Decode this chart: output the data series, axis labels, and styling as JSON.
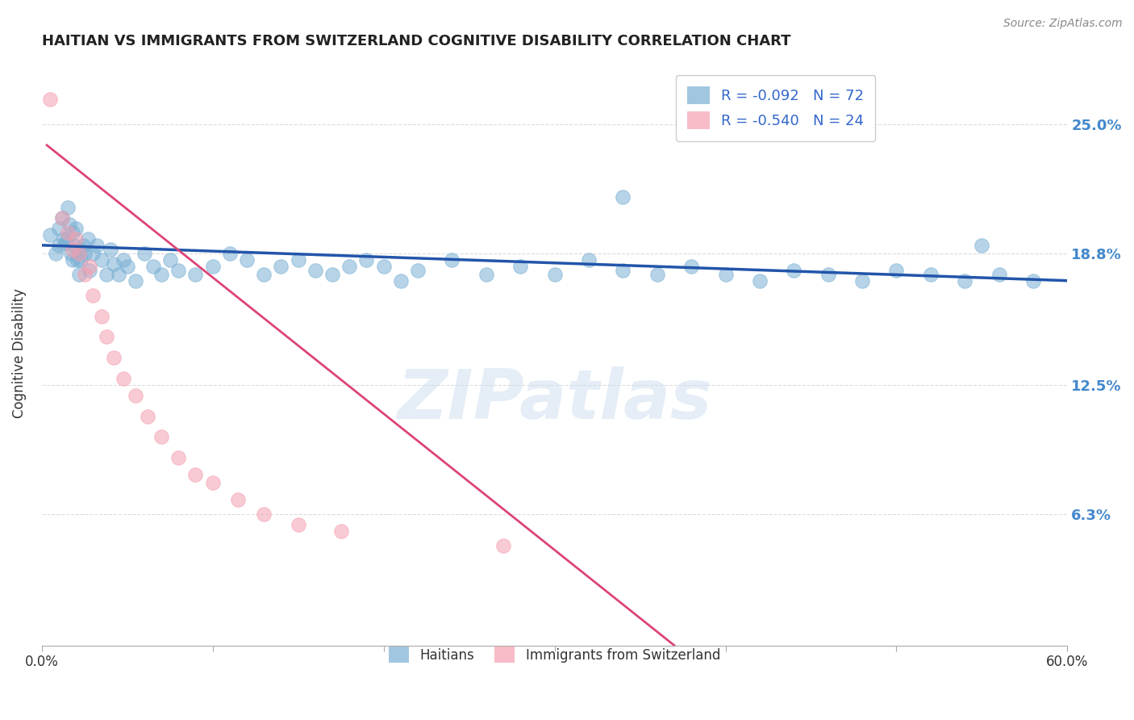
{
  "title": "HAITIAN VS IMMIGRANTS FROM SWITZERLAND COGNITIVE DISABILITY CORRELATION CHART",
  "source": "Source: ZipAtlas.com",
  "ylabel": "Cognitive Disability",
  "xlim": [
    0.0,
    0.6
  ],
  "ylim": [
    0.0,
    0.28
  ],
  "yticks": [
    0.063,
    0.125,
    0.188,
    0.25
  ],
  "ytick_labels": [
    "6.3%",
    "12.5%",
    "18.8%",
    "25.0%"
  ],
  "xtick_positions": [
    0.0,
    0.1,
    0.2,
    0.3,
    0.4,
    0.5,
    0.6
  ],
  "xtick_labels": [
    "0.0%",
    "",
    "",
    "",
    "",
    "",
    "60.0%"
  ],
  "blue_R": -0.092,
  "blue_N": 72,
  "pink_R": -0.54,
  "pink_N": 24,
  "blue_color": "#7ab0d4",
  "pink_color": "#f4a0b0",
  "blue_line_color": "#2255aa",
  "pink_line_color": "#dd4477",
  "background_color": "#ffffff",
  "grid_color": "#cccccc",
  "watermark": "ZIPatlas",
  "title_color": "#222222",
  "axis_label_color": "#333333",
  "right_tick_color": "#4488cc",
  "legend_label_color": "#3366cc",
  "blue_x": [
    0.005,
    0.008,
    0.01,
    0.01,
    0.012,
    0.013,
    0.014,
    0.015,
    0.015,
    0.016,
    0.017,
    0.018,
    0.018,
    0.019,
    0.02,
    0.021,
    0.022,
    0.022,
    0.023,
    0.024,
    0.025,
    0.027,
    0.028,
    0.03,
    0.032,
    0.035,
    0.038,
    0.04,
    0.042,
    0.045,
    0.048,
    0.05,
    0.055,
    0.06,
    0.065,
    0.07,
    0.075,
    0.08,
    0.09,
    0.1,
    0.11,
    0.12,
    0.13,
    0.14,
    0.15,
    0.16,
    0.17,
    0.18,
    0.19,
    0.2,
    0.21,
    0.22,
    0.24,
    0.26,
    0.28,
    0.3,
    0.32,
    0.34,
    0.36,
    0.38,
    0.4,
    0.42,
    0.44,
    0.46,
    0.48,
    0.5,
    0.52,
    0.54,
    0.56,
    0.58,
    0.34,
    0.55
  ],
  "blue_y": [
    0.197,
    0.188,
    0.2,
    0.192,
    0.205,
    0.195,
    0.193,
    0.21,
    0.195,
    0.202,
    0.188,
    0.198,
    0.185,
    0.192,
    0.2,
    0.185,
    0.19,
    0.178,
    0.185,
    0.192,
    0.188,
    0.195,
    0.18,
    0.188,
    0.192,
    0.185,
    0.178,
    0.19,
    0.183,
    0.178,
    0.185,
    0.182,
    0.175,
    0.188,
    0.182,
    0.178,
    0.185,
    0.18,
    0.178,
    0.182,
    0.188,
    0.185,
    0.178,
    0.182,
    0.185,
    0.18,
    0.178,
    0.182,
    0.185,
    0.182,
    0.175,
    0.18,
    0.185,
    0.178,
    0.182,
    0.178,
    0.185,
    0.18,
    0.178,
    0.182,
    0.178,
    0.175,
    0.18,
    0.178,
    0.175,
    0.18,
    0.178,
    0.175,
    0.178,
    0.175,
    0.215,
    0.192
  ],
  "pink_x": [
    0.005,
    0.012,
    0.015,
    0.018,
    0.02,
    0.022,
    0.025,
    0.028,
    0.03,
    0.035,
    0.038,
    0.042,
    0.048,
    0.055,
    0.062,
    0.07,
    0.08,
    0.09,
    0.1,
    0.115,
    0.13,
    0.15,
    0.175,
    0.27
  ],
  "pink_y": [
    0.262,
    0.205,
    0.198,
    0.19,
    0.195,
    0.188,
    0.178,
    0.182,
    0.168,
    0.158,
    0.148,
    0.138,
    0.128,
    0.12,
    0.11,
    0.1,
    0.09,
    0.082,
    0.078,
    0.07,
    0.063,
    0.058,
    0.055,
    0.048
  ],
  "blue_line_x": [
    0.0,
    0.6
  ],
  "blue_line_y": [
    0.192,
    0.175
  ],
  "pink_line_x": [
    0.003,
    0.37
  ],
  "pink_line_y": [
    0.24,
    0.0
  ]
}
